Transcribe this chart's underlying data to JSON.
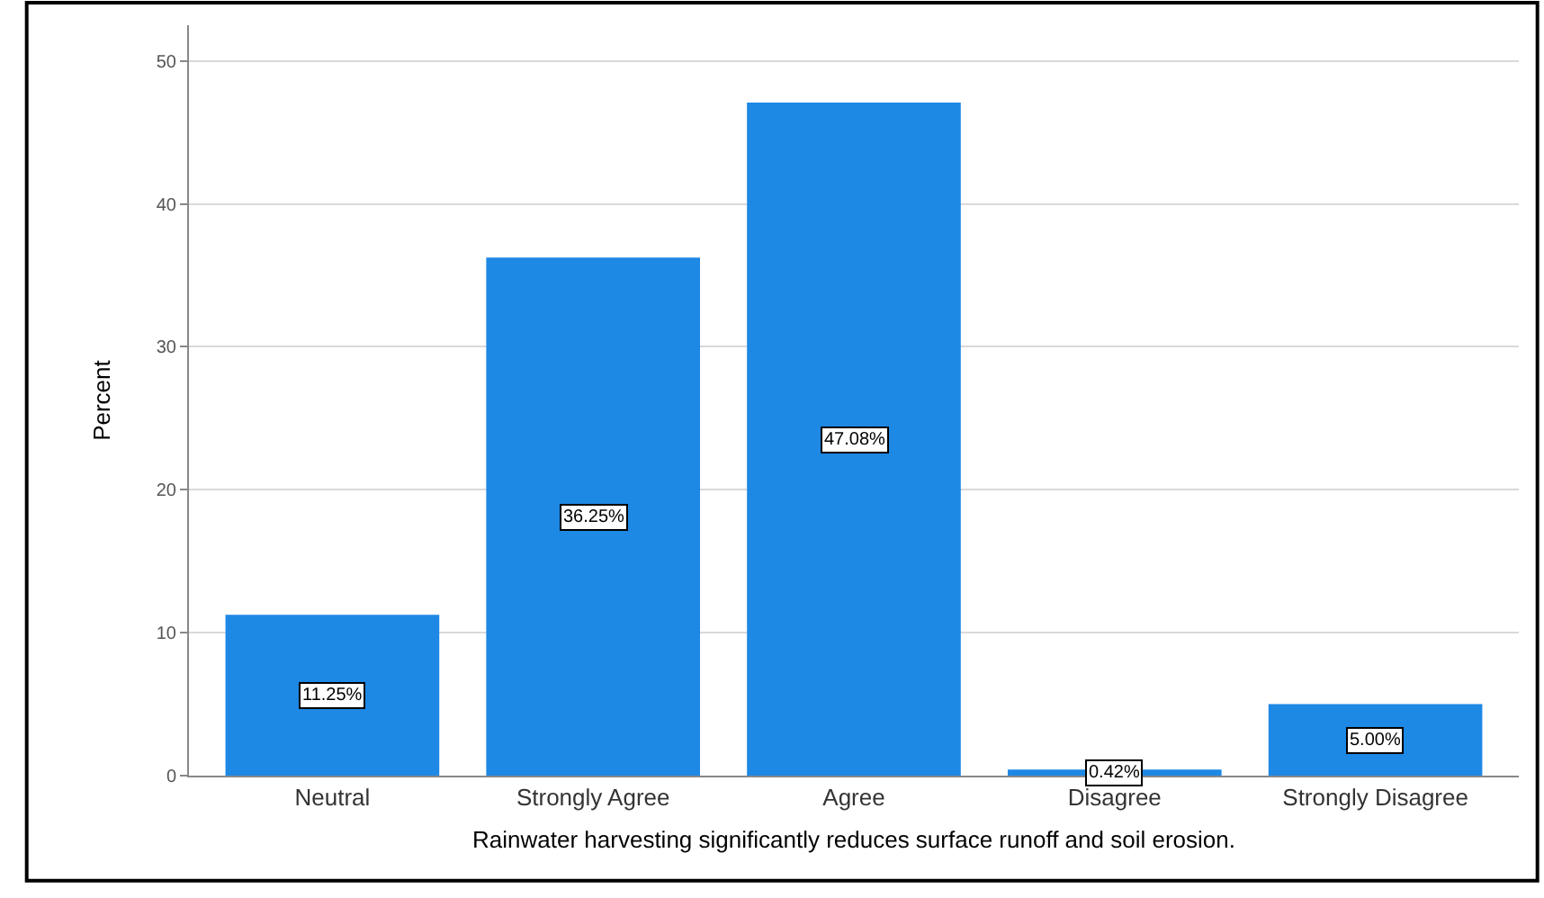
{
  "chart_data": {
    "type": "bar",
    "xlabel": "Rainwater harvesting significantly reduces surface runoff and soil erosion.",
    "ylabel": "Percent",
    "categories": [
      "Neutral",
      "Strongly Agree",
      "Agree",
      "Disagree",
      "Strongly Disagree"
    ],
    "values": [
      11.25,
      36.25,
      47.08,
      0.42,
      5.0
    ],
    "value_labels": [
      "11.25%",
      "36.25%",
      "47.08%",
      "0.42%",
      "5.00%"
    ],
    "color": "#1e88e5",
    "ylim": [
      0,
      52.5
    ],
    "yticks": [
      0,
      10,
      20,
      30,
      40,
      50
    ],
    "grid": "y",
    "legend": false
  }
}
